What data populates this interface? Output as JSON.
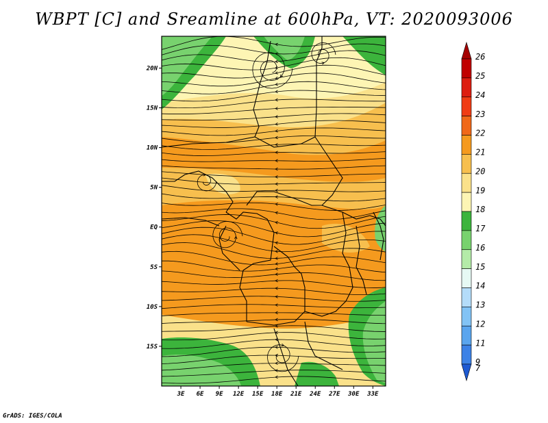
{
  "title": "WBPT [C] and Sreamline at 600hPa, VT: 2020093006",
  "footer": "GrADS: IGES/COLA",
  "map": {
    "lon_range": [
      0,
      35
    ],
    "lat_range": [
      -20,
      24
    ],
    "lat_ticks": [
      {
        "value": 20,
        "label": "20N"
      },
      {
        "value": 15,
        "label": "15N"
      },
      {
        "value": 10,
        "label": "10N"
      },
      {
        "value": 5,
        "label": "5N"
      },
      {
        "value": 0,
        "label": "EQ"
      },
      {
        "value": -5,
        "label": "5S"
      },
      {
        "value": -10,
        "label": "10S"
      },
      {
        "value": -15,
        "label": "15S"
      }
    ],
    "lon_ticks": [
      {
        "value": 3,
        "label": "3E"
      },
      {
        "value": 6,
        "label": "6E"
      },
      {
        "value": 9,
        "label": "9E"
      },
      {
        "value": 12,
        "label": "12E"
      },
      {
        "value": 15,
        "label": "15E"
      },
      {
        "value": 18,
        "label": "18E"
      },
      {
        "value": 21,
        "label": "21E"
      },
      {
        "value": 24,
        "label": "24E"
      },
      {
        "value": 27,
        "label": "27E"
      },
      {
        "value": 30,
        "label": "30E"
      },
      {
        "value": 33,
        "label": "33E"
      }
    ]
  },
  "colorbar": {
    "levels": [
      {
        "label": "26",
        "color": "#a50000"
      },
      {
        "label": "25",
        "color": "#c00000"
      },
      {
        "label": "24",
        "color": "#dd1d10"
      },
      {
        "label": "23",
        "color": "#f03c14"
      },
      {
        "label": "22",
        "color": "#f06818"
      },
      {
        "label": "21",
        "color": "#f59a1e"
      },
      {
        "label": "20",
        "color": "#f7bf4e"
      },
      {
        "label": "19",
        "color": "#fae18a"
      },
      {
        "label": "18",
        "color": "#fdf5b4"
      },
      {
        "label": "17",
        "color": "#3cb43c"
      },
      {
        "label": "16",
        "color": "#78d26e"
      },
      {
        "label": "15",
        "color": "#b4eba8"
      },
      {
        "label": "14",
        "color": "#e6f9f4"
      },
      {
        "label": "13",
        "color": "#b4dcf9"
      },
      {
        "label": "12",
        "color": "#82c3f5"
      },
      {
        "label": "11",
        "color": "#5aa5ee"
      },
      {
        "label": "9",
        "color": "#3c82e6"
      },
      {
        "label": "7",
        "color": "#1e5ad2"
      }
    ]
  }
}
